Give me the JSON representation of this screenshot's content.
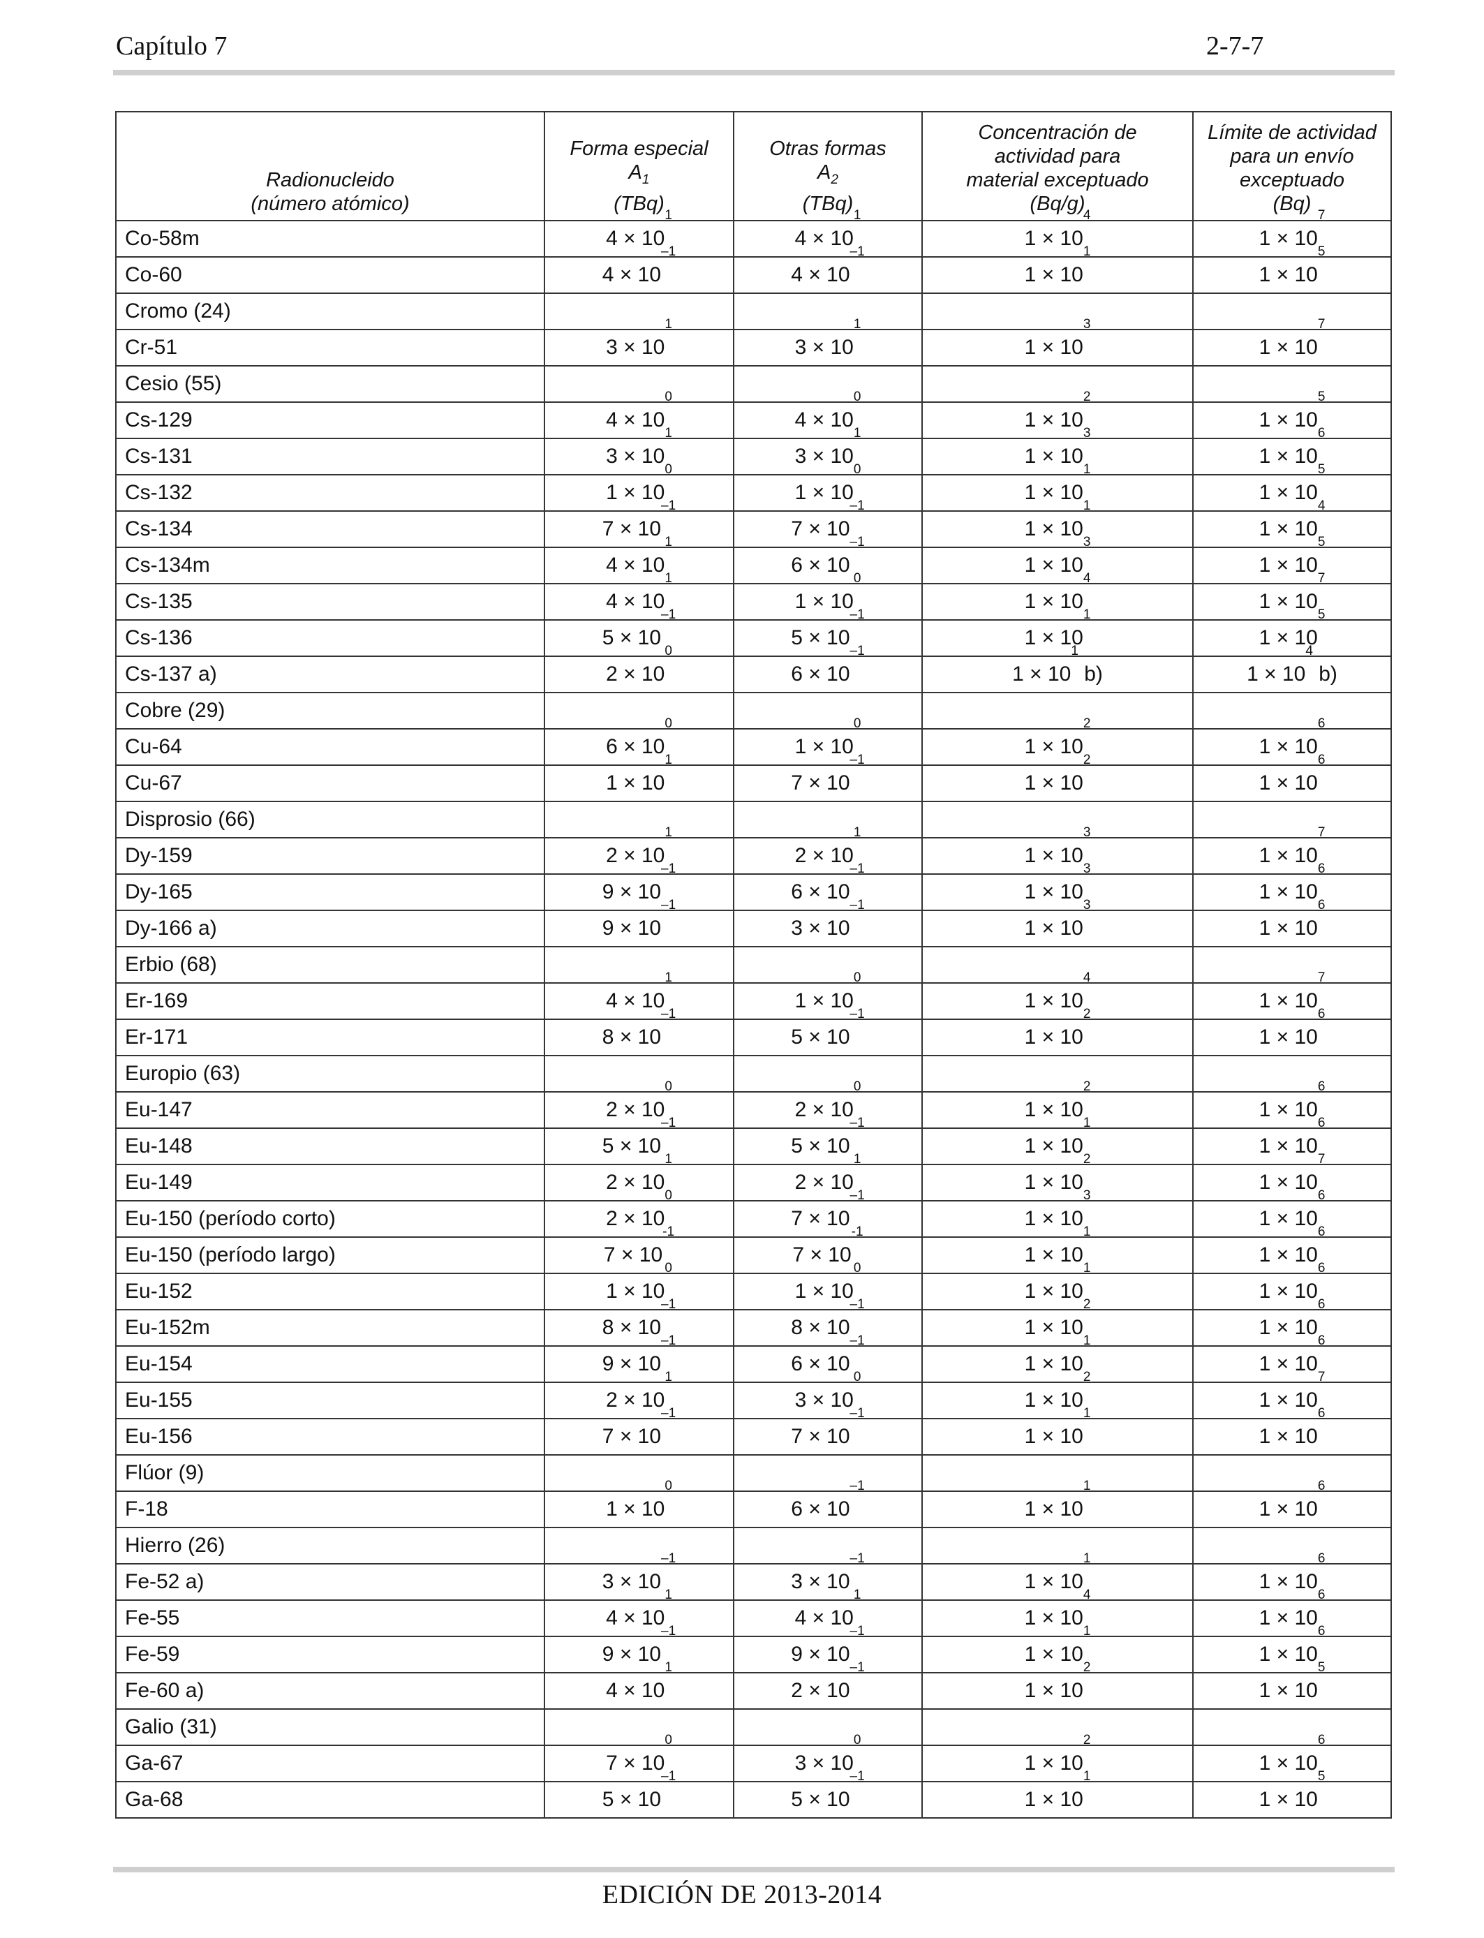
{
  "header": {
    "left": "Capítulo 7",
    "right": "2-7-7"
  },
  "footer": "EDICIÓN DE 2013-2014",
  "table": {
    "columns": [
      {
        "lines": [
          "Radionucleido",
          "(número atómico)"
        ]
      },
      {
        "lines": [
          "Forma especial"
        ],
        "symbol": "A",
        "symbol_sub": "1",
        "unit": "(TBq)"
      },
      {
        "lines": [
          "Otras formas"
        ],
        "symbol": "A",
        "symbol_sub": "2",
        "unit": "(TBq)"
      },
      {
        "lines": [
          "Concentración de",
          "actividad para",
          "material exceptuado",
          "(Bq/g)"
        ]
      },
      {
        "lines": [
          "Límite de actividad",
          "para un envío",
          "exceptuado",
          "(Bq)"
        ]
      }
    ],
    "rows": [
      {
        "name": "Co-58m",
        "vals": [
          [
            "4",
            "1"
          ],
          [
            "4",
            "1"
          ],
          [
            "1",
            "4"
          ],
          [
            "1",
            "7"
          ]
        ]
      },
      {
        "name": "Co-60",
        "vals": [
          [
            "4",
            "–1"
          ],
          [
            "4",
            "–1"
          ],
          [
            "1",
            "1"
          ],
          [
            "1",
            "5"
          ]
        ]
      },
      {
        "name": "Cromo (24)",
        "group": true
      },
      {
        "name": "Cr-51",
        "vals": [
          [
            "3",
            "1"
          ],
          [
            "3",
            "1"
          ],
          [
            "1",
            "3"
          ],
          [
            "1",
            "7"
          ]
        ]
      },
      {
        "name": "Cesio (55)",
        "group": true
      },
      {
        "name": "Cs-129",
        "vals": [
          [
            "4",
            "0"
          ],
          [
            "4",
            "0"
          ],
          [
            "1",
            "2"
          ],
          [
            "1",
            "5"
          ]
        ]
      },
      {
        "name": "Cs-131",
        "vals": [
          [
            "3",
            "1"
          ],
          [
            "3",
            "1"
          ],
          [
            "1",
            "3"
          ],
          [
            "1",
            "6"
          ]
        ]
      },
      {
        "name": "Cs-132",
        "vals": [
          [
            "1",
            "0"
          ],
          [
            "1",
            "0"
          ],
          [
            "1",
            "1"
          ],
          [
            "1",
            "5"
          ]
        ]
      },
      {
        "name": "Cs-134",
        "vals": [
          [
            "7",
            "–1"
          ],
          [
            "7",
            "–1"
          ],
          [
            "1",
            "1"
          ],
          [
            "1",
            "4"
          ]
        ]
      },
      {
        "name": "Cs-134m",
        "vals": [
          [
            "4",
            "1"
          ],
          [
            "6",
            "–1"
          ],
          [
            "1",
            "3"
          ],
          [
            "1",
            "5"
          ]
        ]
      },
      {
        "name": "Cs-135",
        "vals": [
          [
            "4",
            "1"
          ],
          [
            "1",
            "0"
          ],
          [
            "1",
            "4"
          ],
          [
            "1",
            "7"
          ]
        ]
      },
      {
        "name": "Cs-136",
        "vals": [
          [
            "5",
            "–1"
          ],
          [
            "5",
            "–1"
          ],
          [
            "1",
            "1"
          ],
          [
            "1",
            "5"
          ]
        ]
      },
      {
        "name": "Cs-137 a)",
        "vals": [
          [
            "2",
            "0"
          ],
          [
            "6",
            "–1"
          ],
          [
            "1",
            "1",
            " b)"
          ],
          [
            "1",
            "4",
            " b)"
          ]
        ]
      },
      {
        "name": "Cobre (29)",
        "group": true
      },
      {
        "name": "Cu-64",
        "vals": [
          [
            "6",
            "0"
          ],
          [
            "1",
            "0"
          ],
          [
            "1",
            "2"
          ],
          [
            "1",
            "6"
          ]
        ]
      },
      {
        "name": "Cu-67",
        "vals": [
          [
            "1",
            "1"
          ],
          [
            "7",
            "–1"
          ],
          [
            "1",
            "2"
          ],
          [
            "1",
            "6"
          ]
        ]
      },
      {
        "name": "Disprosio (66)",
        "group": true
      },
      {
        "name": "Dy-159",
        "vals": [
          [
            "2",
            "1"
          ],
          [
            "2",
            "1"
          ],
          [
            "1",
            "3"
          ],
          [
            "1",
            "7"
          ]
        ]
      },
      {
        "name": "Dy-165",
        "vals": [
          [
            "9",
            "–1"
          ],
          [
            "6",
            "–1"
          ],
          [
            "1",
            "3"
          ],
          [
            "1",
            "6"
          ]
        ]
      },
      {
        "name": "Dy-166 a)",
        "vals": [
          [
            "9",
            "–1"
          ],
          [
            "3",
            "–1"
          ],
          [
            "1",
            "3"
          ],
          [
            "1",
            "6"
          ]
        ]
      },
      {
        "name": "Erbio (68)",
        "group": true
      },
      {
        "name": "Er-169",
        "vals": [
          [
            "4",
            "1"
          ],
          [
            "1",
            "0"
          ],
          [
            "1",
            "4"
          ],
          [
            "1",
            "7"
          ]
        ]
      },
      {
        "name": "Er-171",
        "vals": [
          [
            "8",
            "–1"
          ],
          [
            "5",
            "–1"
          ],
          [
            "1",
            "2"
          ],
          [
            "1",
            "6"
          ]
        ]
      },
      {
        "name": "Europio (63)",
        "group": true
      },
      {
        "name": "Eu-147",
        "vals": [
          [
            "2",
            "0"
          ],
          [
            "2",
            "0"
          ],
          [
            "1",
            "2"
          ],
          [
            "1",
            "6"
          ]
        ]
      },
      {
        "name": "Eu-148",
        "vals": [
          [
            "5",
            "–1"
          ],
          [
            "5",
            "–1"
          ],
          [
            "1",
            "1"
          ],
          [
            "1",
            "6"
          ]
        ]
      },
      {
        "name": "Eu-149",
        "vals": [
          [
            "2",
            "1"
          ],
          [
            "2",
            "1"
          ],
          [
            "1",
            "2"
          ],
          [
            "1",
            "7"
          ]
        ]
      },
      {
        "name": "Eu-150 (período corto)",
        "vals": [
          [
            "2",
            "0"
          ],
          [
            "7",
            "–1"
          ],
          [
            "1",
            "3"
          ],
          [
            "1",
            "6"
          ]
        ]
      },
      {
        "name": "Eu-150 (período largo)",
        "vals": [
          [
            "7",
            "-1"
          ],
          [
            "7",
            "-1"
          ],
          [
            "1",
            "1"
          ],
          [
            "1",
            "6"
          ]
        ]
      },
      {
        "name": "Eu-152",
        "vals": [
          [
            "1",
            "0"
          ],
          [
            "1",
            "0"
          ],
          [
            "1",
            "1"
          ],
          [
            "1",
            "6"
          ]
        ]
      },
      {
        "name": "Eu-152m",
        "vals": [
          [
            "8",
            "–1"
          ],
          [
            "8",
            "–1"
          ],
          [
            "1",
            "2"
          ],
          [
            "1",
            "6"
          ]
        ]
      },
      {
        "name": "Eu-154",
        "vals": [
          [
            "9",
            "–1"
          ],
          [
            "6",
            "–1"
          ],
          [
            "1",
            "1"
          ],
          [
            "1",
            "6"
          ]
        ]
      },
      {
        "name": "Eu-155",
        "vals": [
          [
            "2",
            "1"
          ],
          [
            "3",
            "0"
          ],
          [
            "1",
            "2"
          ],
          [
            "1",
            "7"
          ]
        ]
      },
      {
        "name": "Eu-156",
        "vals": [
          [
            "7",
            "–1"
          ],
          [
            "7",
            "–1"
          ],
          [
            "1",
            "1"
          ],
          [
            "1",
            "6"
          ]
        ]
      },
      {
        "name": "Flúor (9)",
        "group": true
      },
      {
        "name": "F-18",
        "vals": [
          [
            "1",
            "0"
          ],
          [
            "6",
            "–1"
          ],
          [
            "1",
            "1"
          ],
          [
            "1",
            "6"
          ]
        ]
      },
      {
        "name": "Hierro (26)",
        "group": true
      },
      {
        "name": "Fe-52 a)",
        "vals": [
          [
            "3",
            "–1"
          ],
          [
            "3",
            "–1"
          ],
          [
            "1",
            "1"
          ],
          [
            "1",
            "6"
          ]
        ]
      },
      {
        "name": "Fe-55",
        "vals": [
          [
            "4",
            "1"
          ],
          [
            "4",
            "1"
          ],
          [
            "1",
            "4"
          ],
          [
            "1",
            "6"
          ]
        ]
      },
      {
        "name": "Fe-59",
        "vals": [
          [
            "9",
            "–1"
          ],
          [
            "9",
            "–1"
          ],
          [
            "1",
            "1"
          ],
          [
            "1",
            "6"
          ]
        ]
      },
      {
        "name": "Fe-60 a)",
        "vals": [
          [
            "4",
            "1"
          ],
          [
            "2",
            "–1"
          ],
          [
            "1",
            "2"
          ],
          [
            "1",
            "5"
          ]
        ]
      },
      {
        "name": "Galio (31)",
        "group": true
      },
      {
        "name": "Ga-67",
        "vals": [
          [
            "7",
            "0"
          ],
          [
            "3",
            "0"
          ],
          [
            "1",
            "2"
          ],
          [
            "1",
            "6"
          ]
        ]
      },
      {
        "name": "Ga-68",
        "vals": [
          [
            "5",
            "–1"
          ],
          [
            "5",
            "–1"
          ],
          [
            "1",
            "1"
          ],
          [
            "1",
            "5"
          ]
        ]
      }
    ]
  }
}
